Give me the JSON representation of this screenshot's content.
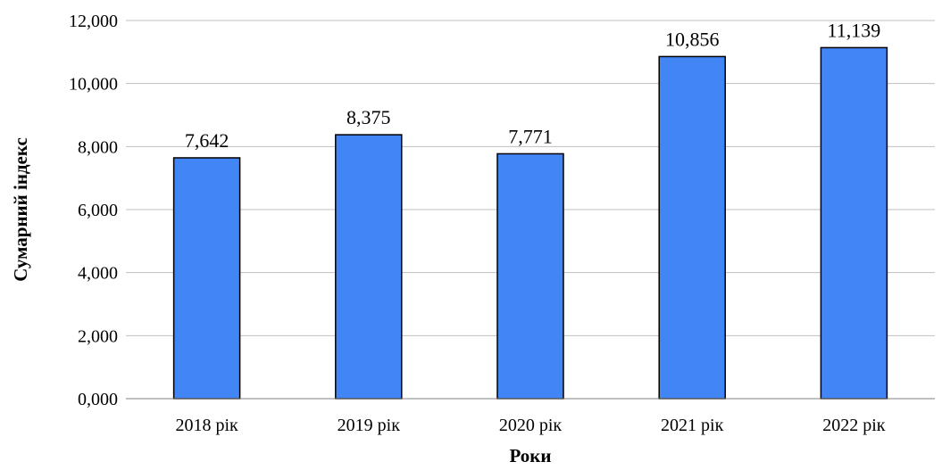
{
  "chart_data": {
    "type": "bar",
    "categories": [
      "2018 рік",
      "2019 рік",
      "2020 рік",
      "2021 рік",
      "2022 рік"
    ],
    "values": [
      7.642,
      8.375,
      7.771,
      10.856,
      11.139
    ],
    "data_labels": [
      "7,642",
      "8,375",
      "7,771",
      "10,856",
      "11,139"
    ],
    "y_ticks": [
      0,
      2,
      4,
      6,
      8,
      10,
      12
    ],
    "y_tick_labels": [
      "0,000",
      "2,000",
      "4,000",
      "6,000",
      "8,000",
      "10,000",
      "12,000"
    ],
    "ylim": [
      0,
      12
    ],
    "xlabel": "Роки",
    "ylabel": "Сумарний індекс",
    "grid": true,
    "legend": "none",
    "bar_color": "#4285f4"
  }
}
